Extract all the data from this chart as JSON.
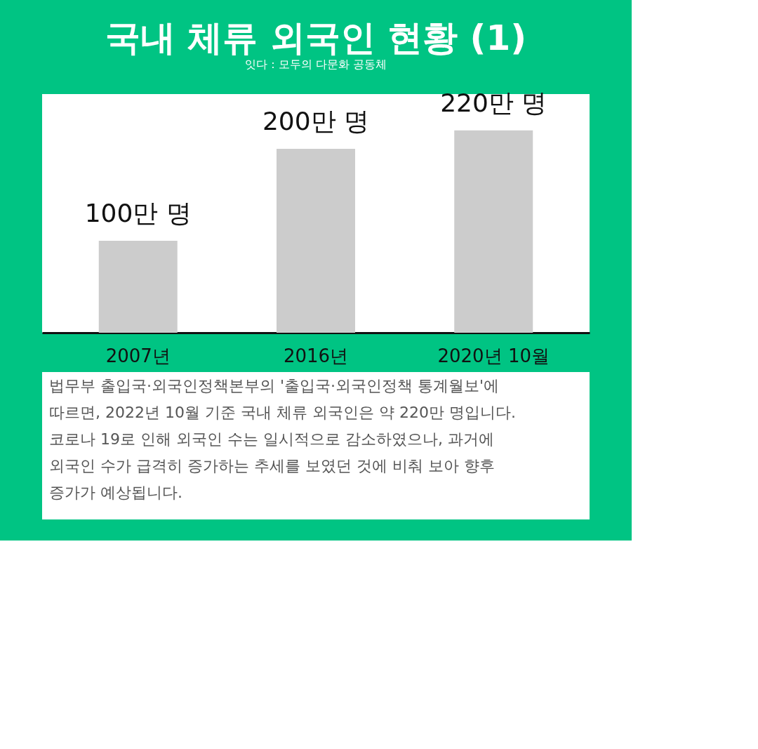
{
  "chart_data": {
    "type": "bar",
    "title": "국내 체류 외국인 현황 (1)",
    "subtitle": "잇다 : 모두의 다문화 공동체",
    "categories": [
      "2007년",
      "2016년",
      "2020년 10월"
    ],
    "values": [
      100,
      200,
      220
    ],
    "value_labels": [
      "100만 명",
      "200만 명",
      "220만 명"
    ],
    "color": "#cccccc",
    "grid": false,
    "annotations": [
      "법무부 출입국·외국인정책본부의 '출입국·외국인정책 통계월보'에 따르면, 2022년 10월 기준 국내 체류 외국인은 약 220만 명입니다. 코로나 19로 인해 외국인 수는 일시적으로 감소하였으나, 과거에 외국인 수가 급격히 증가하는 추세를 보였던 것에 비춰 보아 향후 증가가 예상됩니다."
    ]
  }
}
